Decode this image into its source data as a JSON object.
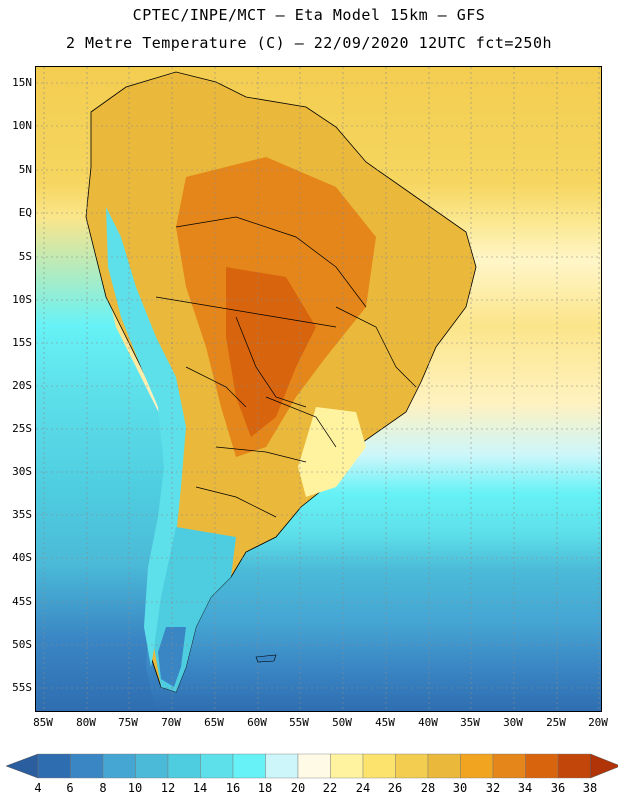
{
  "header": {
    "line1": "CPTEC/INPE/MCT —  Eta Model 15km — GFS",
    "line2": "2 Metre Temperature (C) — 22/09/2020 12UTC fct=250h"
  },
  "map": {
    "lat_labels": [
      "15N",
      "10N",
      "5N",
      "EQ",
      "5S",
      "10S",
      "15S",
      "20S",
      "25S",
      "30S",
      "35S",
      "40S",
      "45S",
      "50S",
      "55S"
    ],
    "lon_labels": [
      "85W",
      "80W",
      "75W",
      "70W",
      "65W",
      "60W",
      "55W",
      "50W",
      "45W",
      "40W",
      "35W",
      "30W",
      "25W",
      "20W"
    ]
  },
  "legend": {
    "values": [
      "4",
      "6",
      "8",
      "10",
      "12",
      "14",
      "16",
      "18",
      "20",
      "22",
      "24",
      "26",
      "28",
      "30",
      "32",
      "34",
      "36",
      "38"
    ],
    "colors": [
      "#2e6db0",
      "#3a86c4",
      "#45a5d3",
      "#4bbad8",
      "#4fcde0",
      "#5ee0ea",
      "#66f2f6",
      "#cdf6fa",
      "#fffae6",
      "#fff3a0",
      "#fbe36e",
      "#f3cd50",
      "#eab83a",
      "#f0a420",
      "#e5861a",
      "#d8640e",
      "#c2460a"
    ],
    "left_arrow_color": "#2b5e9e",
    "right_arrow_color": "#b03408"
  }
}
